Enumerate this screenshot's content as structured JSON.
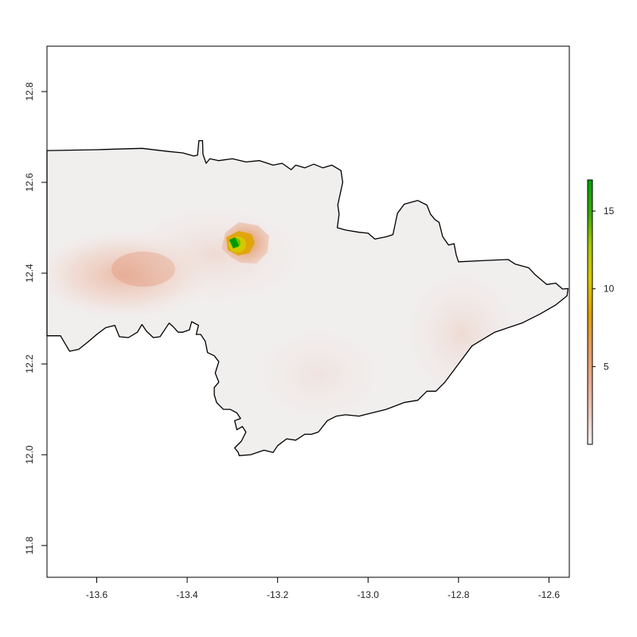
{
  "chart_data": {
    "type": "heatmap",
    "title": "",
    "xlabel": "",
    "ylabel": "",
    "xlim": [
      -13.71,
      -12.555
    ],
    "ylim": [
      11.73,
      12.9
    ],
    "x_ticks": [
      -13.6,
      -13.4,
      -13.2,
      -13.0,
      -12.8,
      -12.6
    ],
    "x_tick_labels": [
      "-13.6",
      "-13.4",
      "-13.2",
      "-13.0",
      "-12.8",
      "-12.6"
    ],
    "y_ticks": [
      11.8,
      12.0,
      12.2,
      12.4,
      12.6,
      12.8
    ],
    "y_tick_labels": [
      "11.8",
      "12.0",
      "12.2",
      "12.4",
      "12.6",
      "12.8"
    ],
    "legend": {
      "position": "right",
      "min": 0,
      "max": 17,
      "ticks": [
        5,
        10,
        15
      ],
      "tick_labels": [
        "5",
        "10",
        "15"
      ],
      "colors": [
        "#f2f2f2",
        "#ecc7b8",
        "#e8a88a",
        "#e69b58",
        "#e0a000",
        "#d8c800",
        "#a8c800",
        "#3aa800",
        "#00a000"
      ]
    },
    "grid": false,
    "boundary_polygon": [
      [
        -13.71,
        12.67
      ],
      [
        -13.6,
        12.672
      ],
      [
        -13.5,
        12.675
      ],
      [
        -13.44,
        12.668
      ],
      [
        -13.41,
        12.665
      ],
      [
        -13.385,
        12.658
      ],
      [
        -13.377,
        12.66
      ],
      [
        -13.374,
        12.692
      ],
      [
        -13.366,
        12.692
      ],
      [
        -13.365,
        12.662
      ],
      [
        -13.358,
        12.642
      ],
      [
        -13.35,
        12.652
      ],
      [
        -13.33,
        12.648
      ],
      [
        -13.3,
        12.652
      ],
      [
        -13.27,
        12.645
      ],
      [
        -13.24,
        12.648
      ],
      [
        -13.21,
        12.638
      ],
      [
        -13.19,
        12.642
      ],
      [
        -13.17,
        12.628
      ],
      [
        -13.16,
        12.638
      ],
      [
        -13.14,
        12.632
      ],
      [
        -13.12,
        12.64
      ],
      [
        -13.1,
        12.632
      ],
      [
        -13.08,
        12.638
      ],
      [
        -13.06,
        12.626
      ],
      [
        -13.056,
        12.6
      ],
      [
        -13.067,
        12.55
      ],
      [
        -13.064,
        12.53
      ],
      [
        -13.068,
        12.5
      ],
      [
        -13.05,
        12.495
      ],
      [
        -13.02,
        12.49
      ],
      [
        -13.0,
        12.488
      ],
      [
        -12.985,
        12.475
      ],
      [
        -12.96,
        12.48
      ],
      [
        -12.945,
        12.485
      ],
      [
        -12.935,
        12.532
      ],
      [
        -12.92,
        12.552
      ],
      [
        -12.89,
        12.56
      ],
      [
        -12.87,
        12.55
      ],
      [
        -12.862,
        12.53
      ],
      [
        -12.852,
        12.518
      ],
      [
        -12.843,
        12.512
      ],
      [
        -12.835,
        12.48
      ],
      [
        -12.822,
        12.462
      ],
      [
        -12.81,
        12.465
      ],
      [
        -12.805,
        12.44
      ],
      [
        -12.8,
        12.425
      ],
      [
        -12.74,
        12.428
      ],
      [
        -12.69,
        12.43
      ],
      [
        -12.675,
        12.42
      ],
      [
        -12.645,
        12.412
      ],
      [
        -12.63,
        12.396
      ],
      [
        -12.605,
        12.375
      ],
      [
        -12.585,
        12.378
      ],
      [
        -12.57,
        12.365
      ],
      [
        -12.558,
        12.366
      ],
      [
        -12.56,
        12.35
      ],
      [
        -12.585,
        12.33
      ],
      [
        -12.62,
        12.31
      ],
      [
        -12.66,
        12.29
      ],
      [
        -12.72,
        12.27
      ],
      [
        -12.77,
        12.24
      ],
      [
        -12.8,
        12.2
      ],
      [
        -12.83,
        12.16
      ],
      [
        -12.85,
        12.14
      ],
      [
        -12.87,
        12.14
      ],
      [
        -12.89,
        12.12
      ],
      [
        -12.92,
        12.115
      ],
      [
        -12.96,
        12.1
      ],
      [
        -13.0,
        12.09
      ],
      [
        -13.02,
        12.085
      ],
      [
        -13.05,
        12.088
      ],
      [
        -13.07,
        12.085
      ],
      [
        -13.09,
        12.075
      ],
      [
        -13.11,
        12.05
      ],
      [
        -13.125,
        12.045
      ],
      [
        -13.14,
        12.045
      ],
      [
        -13.16,
        12.032
      ],
      [
        -13.18,
        12.035
      ],
      [
        -13.2,
        12.02
      ],
      [
        -13.21,
        12.005
      ],
      [
        -13.23,
        12.01
      ],
      [
        -13.26,
        12.0
      ],
      [
        -13.285,
        11.998
      ],
      [
        -13.287,
        12.005
      ],
      [
        -13.295,
        12.015
      ],
      [
        -13.28,
        12.03
      ],
      [
        -13.27,
        12.05
      ],
      [
        -13.278,
        12.062
      ],
      [
        -13.29,
        12.055
      ],
      [
        -13.295,
        12.075
      ],
      [
        -13.282,
        12.08
      ],
      [
        -13.29,
        12.092
      ],
      [
        -13.305,
        12.1
      ],
      [
        -13.32,
        12.1
      ],
      [
        -13.335,
        12.115
      ],
      [
        -13.34,
        12.132
      ],
      [
        -13.34,
        12.148
      ],
      [
        -13.33,
        12.16
      ],
      [
        -13.338,
        12.18
      ],
      [
        -13.33,
        12.205
      ],
      [
        -13.34,
        12.218
      ],
      [
        -13.355,
        12.225
      ],
      [
        -13.36,
        12.25
      ],
      [
        -13.37,
        12.265
      ],
      [
        -13.38,
        12.265
      ],
      [
        -13.375,
        12.285
      ],
      [
        -13.39,
        12.293
      ],
      [
        -13.395,
        12.275
      ],
      [
        -13.41,
        12.27
      ],
      [
        -13.42,
        12.27
      ],
      [
        -13.432,
        12.283
      ],
      [
        -13.44,
        12.29
      ],
      [
        -13.45,
        12.275
      ],
      [
        -13.46,
        12.26
      ],
      [
        -13.475,
        12.258
      ],
      [
        -13.49,
        12.272
      ],
      [
        -13.5,
        12.287
      ],
      [
        -13.51,
        12.27
      ],
      [
        -13.53,
        12.258
      ],
      [
        -13.55,
        12.26
      ],
      [
        -13.56,
        12.285
      ],
      [
        -13.58,
        12.28
      ],
      [
        -13.6,
        12.265
      ],
      [
        -13.62,
        12.248
      ],
      [
        -13.64,
        12.232
      ],
      [
        -13.66,
        12.228
      ],
      [
        -13.67,
        12.245
      ],
      [
        -13.68,
        12.262
      ],
      [
        -13.71,
        12.262
      ]
    ],
    "hotspots": [
      {
        "x": -13.48,
        "y": 12.425,
        "value": 3.5
      },
      {
        "x": -13.275,
        "y": 12.49,
        "value": 6
      },
      {
        "x": -13.295,
        "y": 12.485,
        "value": 10
      },
      {
        "x": -13.3,
        "y": 12.488,
        "value": 17
      },
      {
        "x": -13.35,
        "y": 12.425,
        "value": 2.2
      },
      {
        "x": -12.8,
        "y": 12.33,
        "value": 1.8
      }
    ]
  }
}
